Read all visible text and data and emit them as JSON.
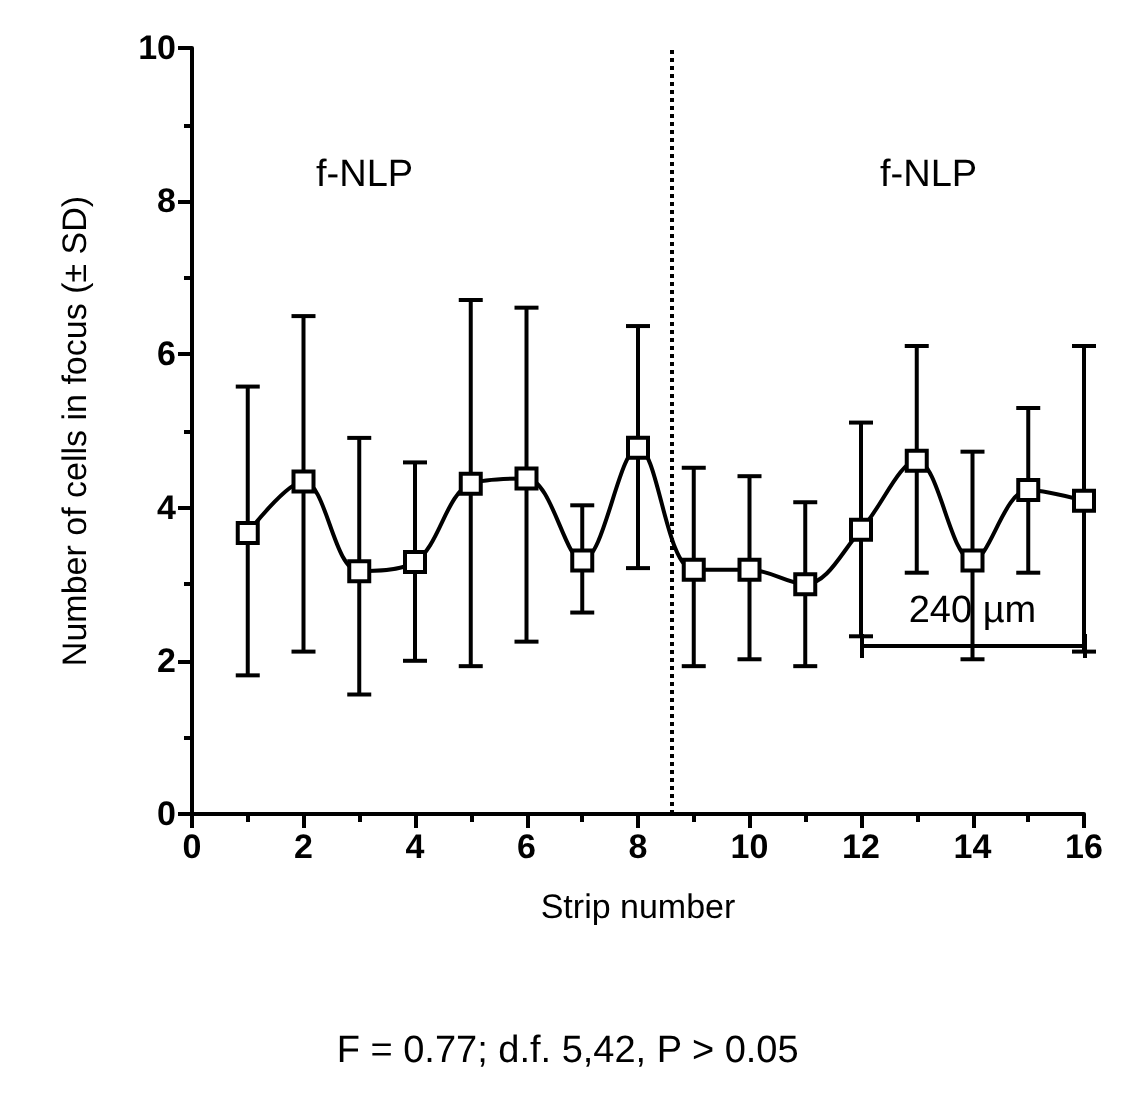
{
  "chart_data": {
    "type": "line",
    "xlabel": "Strip number",
    "ylabel": "Number of cells in focus (± SD)",
    "x": [
      1,
      2,
      3,
      4,
      5,
      6,
      7,
      8,
      9,
      10,
      11,
      12,
      13,
      14,
      15,
      16
    ],
    "series": [
      {
        "color": "#000000",
        "values": [
          3.67,
          4.34,
          3.17,
          3.29,
          4.31,
          4.38,
          3.31,
          4.78,
          3.19,
          3.19,
          3.0,
          3.71,
          4.61,
          3.31,
          4.23,
          4.09
        ],
        "errors": [
          [
            1.81,
            5.58
          ],
          [
            2.12,
            6.5
          ],
          [
            1.56,
            4.91
          ],
          [
            2.0,
            4.59
          ],
          [
            1.93,
            6.71
          ],
          [
            2.25,
            6.61
          ],
          [
            2.63,
            4.03
          ],
          [
            3.21,
            6.37
          ],
          [
            1.93,
            4.52
          ],
          [
            2.02,
            4.41
          ],
          [
            1.93,
            4.07
          ],
          [
            2.32,
            5.11
          ],
          [
            3.15,
            6.11
          ],
          [
            2.02,
            4.73
          ],
          [
            3.15,
            5.3
          ],
          [
            2.12,
            6.11
          ]
        ]
      }
    ],
    "xlim": [
      0,
      16
    ],
    "xticks": [
      0,
      2,
      4,
      6,
      8,
      10,
      12,
      14,
      16
    ],
    "ylim": [
      0,
      10
    ],
    "yticks": [
      0,
      2,
      4,
      6,
      8,
      10
    ],
    "marker": "square",
    "line_style": "solid",
    "ref_lines": [
      {
        "axis": "x",
        "value": 8.6,
        "color": "#000000",
        "line_style": "dotted"
      }
    ],
    "annotations": [
      "f-NLP",
      "f-NLP",
      "240 µm",
      "F = 0.77; d.f. 5,42, P > 0.05"
    ]
  }
}
